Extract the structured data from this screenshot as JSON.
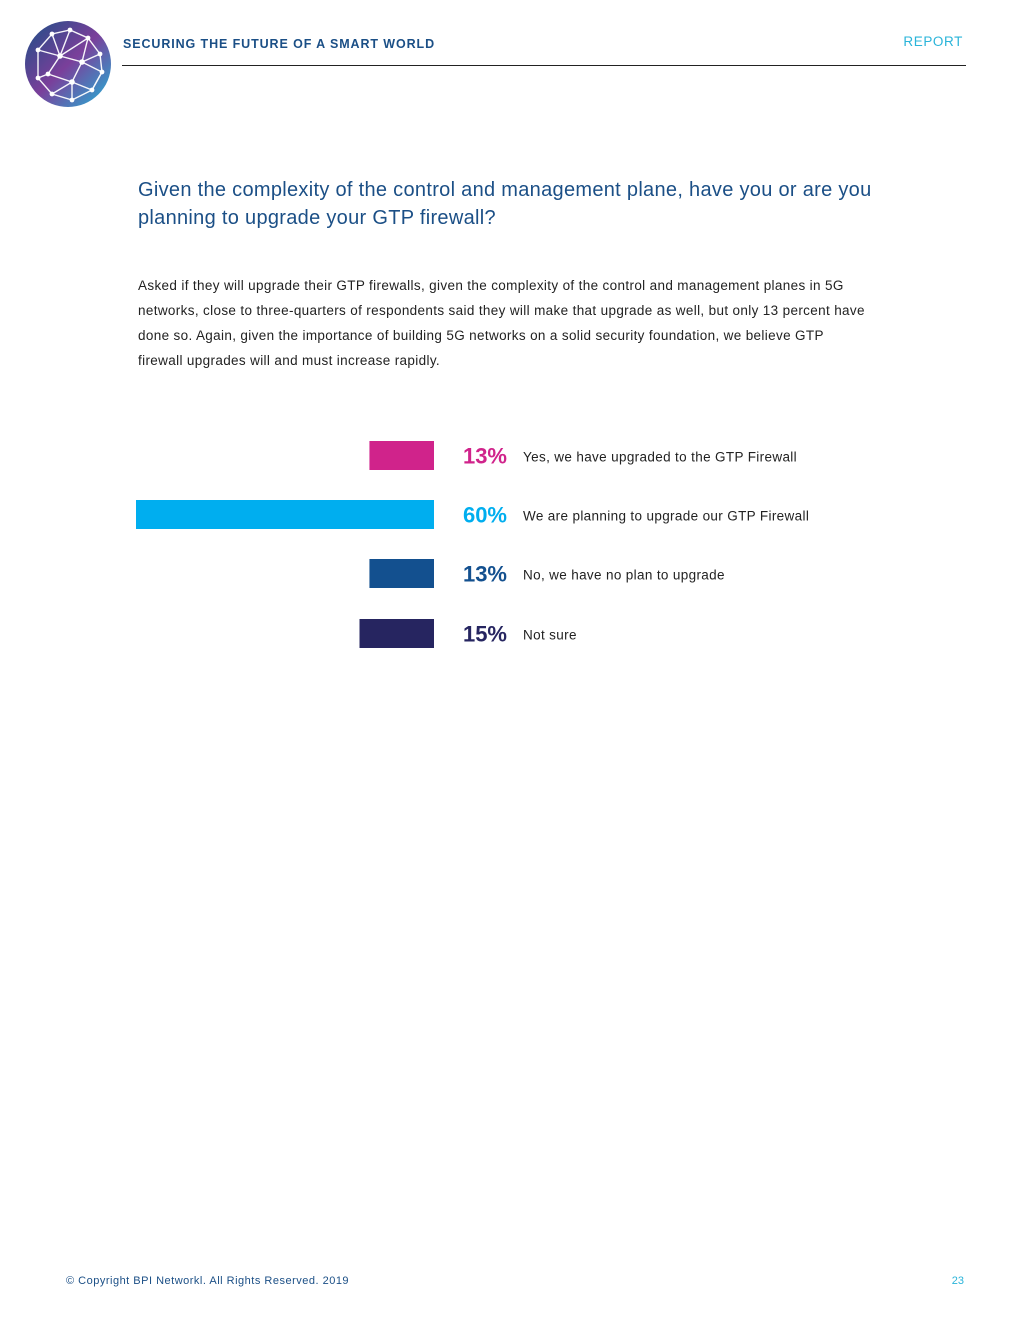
{
  "header": {
    "title": "SECURING THE FUTURE OF A SMART WORLD",
    "report_label": "REPORT"
  },
  "question": "Given the complexity of the control and management plane, have you or are you planning to upgrade your GTP firewall?",
  "body": "Asked if they will upgrade their GTP firewalls, given the complexity of the control and management planes in 5G networks, close to three-quarters of respondents said they will make that upgrade as well, but only 13 percent have done so. Again, given the importance of building 5G networks on a solid security foundation, we believe GTP firewall upgrades will and must increase rapidly.",
  "chart_data": {
    "type": "bar",
    "orientation": "horizontal",
    "categories": [
      "Yes, we have upgraded to the GTP Firewall",
      "We are planning to upgrade our GTP Firewall",
      "No, we have no plan to upgrade",
      "Not sure"
    ],
    "values": [
      13,
      60,
      13,
      15
    ],
    "value_labels": [
      "13%",
      "60%",
      "13%",
      "15%"
    ],
    "colors": [
      "#d0238b",
      "#00aeef",
      "#13508f",
      "#262560"
    ],
    "xlim": [
      0,
      60
    ],
    "grid": false
  },
  "footer": {
    "copyright": "© Copyright BPI Networkl. All Rights Reserved. 2019",
    "page_number": "23"
  }
}
